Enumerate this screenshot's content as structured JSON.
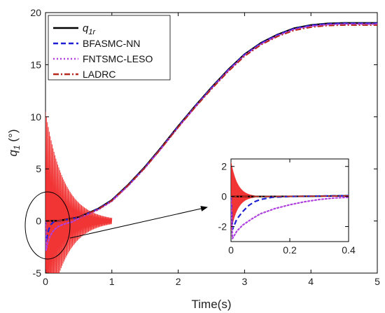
{
  "chart_data": [
    {
      "type": "line",
      "xlabel": "Time(s)",
      "ylabel_main": "q",
      "ylabel_sub": "1",
      "ylabel_unit": " (°)",
      "xlim": [
        0,
        5
      ],
      "ylim": [
        -5,
        20
      ],
      "xticks": [
        0,
        1,
        2,
        3,
        4,
        5
      ],
      "yticks": [
        -5,
        0,
        5,
        10,
        15,
        20
      ],
      "grid": false,
      "legend": {
        "placement": "top-left",
        "entries": [
          {
            "main": "q",
            "sub": "1r",
            "color": "#000000",
            "dash": "solid"
          },
          {
            "main": "BFASMC-NN",
            "sub": "",
            "color": "#1f1fd6",
            "dash": "dashed"
          },
          {
            "main": "FNTSMC-LESO",
            "sub": "",
            "color": "#b040e0",
            "dash": "dotted"
          },
          {
            "main": "LADRC",
            "sub": "",
            "color": "#b8281e",
            "dash": "dashdot"
          }
        ]
      },
      "series": [
        {
          "name": "q1r",
          "color": "#000000",
          "dash": "solid",
          "width": 2.5,
          "x": [
            0,
            0.2,
            0.5,
            0.8,
            1.0,
            1.25,
            1.5,
            1.75,
            2.0,
            2.25,
            2.5,
            2.75,
            3.0,
            3.25,
            3.5,
            3.75,
            4.0,
            4.25,
            4.5,
            4.75,
            5.0
          ],
          "y": [
            0,
            0.02,
            0.35,
            1.2,
            2.0,
            3.5,
            5.2,
            7.1,
            9.1,
            11.0,
            12.8,
            14.5,
            16.0,
            17.1,
            17.9,
            18.5,
            18.8,
            18.95,
            19.0,
            19.0,
            19.0
          ]
        },
        {
          "name": "BFASMC-NN",
          "color": "#1f1fd6",
          "dash": "dashed",
          "width": 2.2,
          "x": [
            0,
            0.01,
            0.03,
            0.05,
            0.08,
            0.12,
            0.2,
            0.5,
            0.8,
            1.0,
            1.25,
            1.5,
            1.75,
            2.0,
            2.25,
            2.5,
            2.75,
            3.0,
            3.25,
            3.5,
            3.75,
            4.0,
            4.25,
            4.5,
            4.75,
            5.0
          ],
          "y": [
            0,
            -2.0,
            -1.3,
            -0.8,
            -0.35,
            -0.1,
            0.0,
            0.33,
            1.18,
            1.98,
            3.47,
            5.17,
            7.07,
            9.07,
            10.97,
            12.77,
            14.47,
            15.97,
            17.07,
            17.87,
            18.47,
            18.77,
            18.92,
            18.97,
            18.97,
            18.97
          ]
        },
        {
          "name": "FNTSMC-LESO",
          "color": "#b040e0",
          "dash": "dotted",
          "width": 2.2,
          "x": [
            0,
            0.01,
            0.03,
            0.06,
            0.1,
            0.15,
            0.2,
            0.3,
            0.4,
            0.5,
            0.8,
            1.0,
            1.25,
            1.5,
            1.75,
            2.0,
            2.25,
            2.5,
            2.75,
            3.0,
            3.25,
            3.5,
            3.75,
            4.0,
            4.25,
            4.5,
            4.75,
            5.0
          ],
          "y": [
            0,
            -2.8,
            -2.2,
            -1.6,
            -1.1,
            -0.75,
            -0.5,
            -0.25,
            -0.1,
            0.25,
            1.1,
            1.9,
            3.4,
            5.1,
            7.0,
            9.0,
            10.9,
            12.7,
            14.4,
            15.9,
            17.0,
            17.8,
            18.4,
            18.7,
            18.85,
            18.9,
            18.9,
            18.9
          ]
        },
        {
          "name": "LADRC",
          "color": "#b8281e",
          "dash": "dashdot",
          "width": 2.0,
          "x": [
            0,
            0.1,
            0.2,
            0.5,
            0.8,
            1.0,
            1.25,
            1.5,
            1.75,
            2.0,
            2.25,
            2.5,
            2.75,
            3.0,
            3.25,
            3.5,
            3.75,
            4.0,
            4.25,
            4.5,
            4.75,
            5.0
          ],
          "y": [
            0,
            0.0,
            0.02,
            0.32,
            1.15,
            1.95,
            3.45,
            5.12,
            7.02,
            9.0,
            10.88,
            12.65,
            14.33,
            15.82,
            16.92,
            17.72,
            18.3,
            18.6,
            18.75,
            18.8,
            18.8,
            18.8
          ]
        }
      ]
    },
    {
      "type": "line",
      "title": "",
      "xlim": [
        0,
        0.4
      ],
      "ylim": [
        -3,
        2.5
      ],
      "xticks": [
        0,
        0.2,
        0.4
      ],
      "yticks": [
        -2,
        0,
        2
      ],
      "grid": false,
      "series": [
        {
          "name": "q1r",
          "color": "#000000",
          "dash": "solid",
          "width": 2.2,
          "x": [
            0,
            0.05,
            0.1,
            0.2,
            0.3,
            0.4
          ],
          "y": [
            0,
            0.0,
            0.0,
            0.01,
            0.02,
            0.05
          ]
        },
        {
          "name": "BFASMC-NN",
          "color": "#1f1fd6",
          "dash": "dashed",
          "width": 2.2,
          "x": [
            0,
            0.005,
            0.02,
            0.04,
            0.06,
            0.08,
            0.1,
            0.14,
            0.2,
            0.3,
            0.4
          ],
          "y": [
            0,
            -2.2,
            -1.5,
            -1.0,
            -0.6,
            -0.35,
            -0.2,
            -0.05,
            0.0,
            0.03,
            0.06
          ]
        },
        {
          "name": "FNTSMC-LESO",
          "color": "#b040e0",
          "dash": "dotted",
          "width": 2.2,
          "x": [
            0,
            0.005,
            0.02,
            0.04,
            0.07,
            0.1,
            0.15,
            0.2,
            0.25,
            0.3,
            0.35,
            0.4
          ],
          "y": [
            0,
            -2.8,
            -2.3,
            -1.9,
            -1.5,
            -1.15,
            -0.8,
            -0.55,
            -0.35,
            -0.2,
            -0.1,
            -0.05
          ]
        },
        {
          "name": "LADRC",
          "color": "#b8281e",
          "dash": "dashdot",
          "width": 1.8,
          "x": [
            0,
            0.05,
            0.1,
            0.2,
            0.3,
            0.4
          ],
          "y": [
            0,
            0.0,
            0.0,
            0.01,
            0.02,
            0.04
          ]
        }
      ]
    }
  ]
}
